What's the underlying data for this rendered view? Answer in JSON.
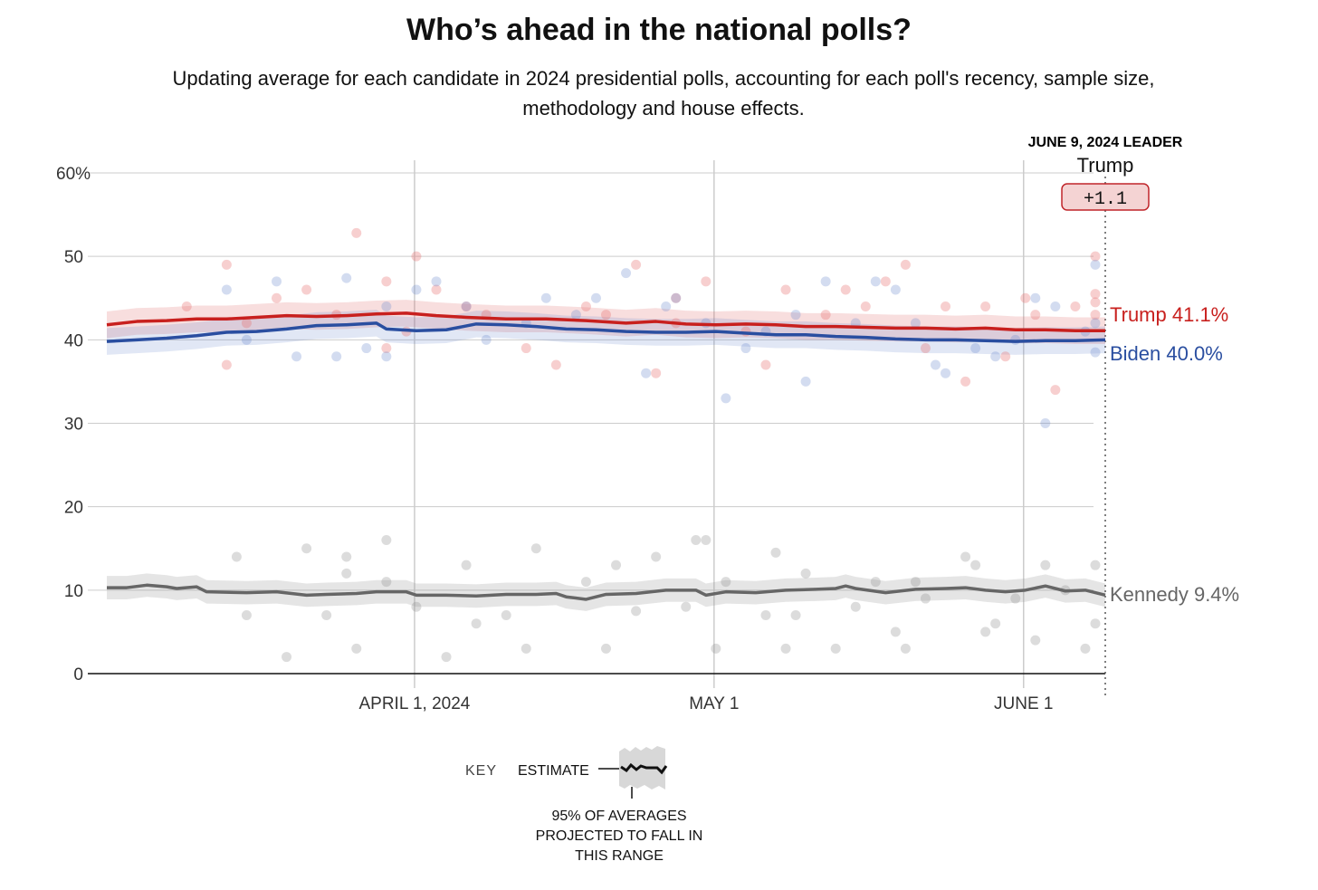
{
  "header": {
    "title": "Who’s ahead in the national polls?",
    "subtitle": "Updating average for each candidate in 2024 presidential polls, accounting for each poll's recency, sample size, methodology and house effects."
  },
  "leader": {
    "heading": "JUNE 9, 2024 LEADER",
    "name": "Trump",
    "margin": "+1.1"
  },
  "key": {
    "label": "KEY",
    "estimate": "ESTIMATE",
    "range_lines": [
      "95% OF AVERAGES",
      "PROJECTED TO FALL IN",
      "THIS RANGE"
    ]
  },
  "chart_data": {
    "type": "line",
    "title": "Who’s ahead in the national polls?",
    "x_unit": "days since March 1, 2024",
    "xlim": [
      0,
      100
    ],
    "ylim": [
      0,
      60
    ],
    "y_ticks": [
      0,
      10,
      20,
      30,
      40,
      50,
      60
    ],
    "y_tick_labels": [
      "0",
      "10",
      "20",
      "30",
      "40",
      "50",
      "60%"
    ],
    "x_ticks": [
      31,
      61,
      92
    ],
    "x_tick_labels": [
      "APRIL 1, 2024",
      "MAY 1",
      "JUNE 1"
    ],
    "grid": true,
    "colors": {
      "Trump": "#c8201e",
      "Biden": "#2a4ea0",
      "Kennedy": "#666666"
    },
    "series": [
      {
        "name": "Trump",
        "end_label": "Trump 41.1%",
        "band": 1.6,
        "points": [
          [
            0,
            41.8
          ],
          [
            3,
            42.2
          ],
          [
            6,
            42.3
          ],
          [
            9,
            42.5
          ],
          [
            12,
            42.5
          ],
          [
            15,
            42.7
          ],
          [
            18,
            42.9
          ],
          [
            21,
            42.8
          ],
          [
            24,
            42.9
          ],
          [
            27,
            43.1
          ],
          [
            30,
            43.2
          ],
          [
            33,
            42.9
          ],
          [
            36,
            42.7
          ],
          [
            40,
            42.5
          ],
          [
            44,
            42.5
          ],
          [
            48,
            42.3
          ],
          [
            52,
            42.0
          ],
          [
            55,
            42.2
          ],
          [
            58,
            41.9
          ],
          [
            61,
            41.8
          ],
          [
            64,
            41.9
          ],
          [
            67,
            41.8
          ],
          [
            70,
            41.6
          ],
          [
            73,
            41.6
          ],
          [
            76,
            41.5
          ],
          [
            79,
            41.4
          ],
          [
            82,
            41.4
          ],
          [
            85,
            41.3
          ],
          [
            88,
            41.4
          ],
          [
            91,
            41.2
          ],
          [
            94,
            41.2
          ],
          [
            97,
            41.1
          ],
          [
            100,
            41.1
          ]
        ],
        "polls": [
          [
            8,
            44
          ],
          [
            12,
            49
          ],
          [
            12,
            37
          ],
          [
            14,
            42
          ],
          [
            17,
            45
          ],
          [
            20,
            46
          ],
          [
            23,
            43
          ],
          [
            25,
            52.8
          ],
          [
            28,
            47
          ],
          [
            28,
            39
          ],
          [
            31,
            50
          ],
          [
            30,
            41
          ],
          [
            33,
            46
          ],
          [
            36,
            44
          ],
          [
            38,
            43
          ],
          [
            42,
            39
          ],
          [
            45,
            37
          ],
          [
            48,
            44
          ],
          [
            50,
            43
          ],
          [
            53,
            49
          ],
          [
            55,
            36
          ],
          [
            57,
            45
          ],
          [
            57,
            42
          ],
          [
            60,
            47
          ],
          [
            64,
            41
          ],
          [
            66,
            37
          ],
          [
            68,
            46
          ],
          [
            72,
            43
          ],
          [
            74,
            46
          ],
          [
            76,
            44
          ],
          [
            78,
            47
          ],
          [
            80,
            49
          ],
          [
            82,
            39
          ],
          [
            84,
            44
          ],
          [
            86,
            35
          ],
          [
            88,
            44
          ],
          [
            90,
            38
          ],
          [
            92,
            45
          ],
          [
            93,
            43
          ],
          [
            95,
            34
          ],
          [
            97,
            44
          ],
          [
            99,
            45.5
          ],
          [
            102,
            44.5
          ],
          [
            103,
            43
          ],
          [
            104,
            50
          ]
        ]
      },
      {
        "name": "Biden",
        "end_label": "Biden 40.0%",
        "band": 1.6,
        "points": [
          [
            0,
            39.8
          ],
          [
            3,
            40.0
          ],
          [
            6,
            40.2
          ],
          [
            9,
            40.5
          ],
          [
            12,
            40.9
          ],
          [
            15,
            41.0
          ],
          [
            18,
            41.3
          ],
          [
            21,
            41.7
          ],
          [
            24,
            41.8
          ],
          [
            27,
            42.0
          ],
          [
            28,
            41.3
          ],
          [
            31,
            41.1
          ],
          [
            34,
            41.2
          ],
          [
            37,
            41.9
          ],
          [
            40,
            41.8
          ],
          [
            43,
            41.6
          ],
          [
            46,
            41.3
          ],
          [
            49,
            41.2
          ],
          [
            52,
            41.0
          ],
          [
            55,
            40.9
          ],
          [
            58,
            40.9
          ],
          [
            61,
            41.0
          ],
          [
            64,
            40.8
          ],
          [
            67,
            40.6
          ],
          [
            70,
            40.6
          ],
          [
            73,
            40.4
          ],
          [
            76,
            40.3
          ],
          [
            79,
            40.1
          ],
          [
            82,
            40.0
          ],
          [
            85,
            40.0
          ],
          [
            88,
            39.9
          ],
          [
            91,
            39.8
          ],
          [
            94,
            39.9
          ],
          [
            97,
            39.9
          ],
          [
            100,
            40.0
          ]
        ],
        "polls": [
          [
            12,
            46
          ],
          [
            14,
            40
          ],
          [
            17,
            47
          ],
          [
            19,
            38
          ],
          [
            23,
            38
          ],
          [
            24,
            47.4
          ],
          [
            26,
            39
          ],
          [
            28,
            38
          ],
          [
            28,
            44
          ],
          [
            31,
            46
          ],
          [
            33,
            47
          ],
          [
            36,
            44
          ],
          [
            38,
            40
          ],
          [
            42,
            42
          ],
          [
            44,
            45
          ],
          [
            47,
            43
          ],
          [
            49,
            45
          ],
          [
            52,
            48
          ],
          [
            54,
            36
          ],
          [
            56,
            44
          ],
          [
            57,
            45
          ],
          [
            60,
            42
          ],
          [
            62,
            33
          ],
          [
            64,
            39
          ],
          [
            66,
            41
          ],
          [
            69,
            43
          ],
          [
            70,
            35
          ],
          [
            72,
            47
          ],
          [
            75,
            42
          ],
          [
            77,
            47
          ],
          [
            79,
            46
          ],
          [
            81,
            42
          ],
          [
            83,
            37
          ],
          [
            84,
            36
          ],
          [
            87,
            39
          ],
          [
            89,
            38
          ],
          [
            91,
            40
          ],
          [
            93,
            45
          ],
          [
            94,
            30
          ],
          [
            95,
            44
          ],
          [
            98,
            41
          ],
          [
            101,
            38.5
          ],
          [
            103,
            42
          ],
          [
            105,
            49
          ]
        ]
      },
      {
        "name": "Kennedy",
        "end_label": "Kennedy 9.4%",
        "band": 1.4,
        "points": [
          [
            0,
            10.3
          ],
          [
            2,
            10.3
          ],
          [
            4,
            10.6
          ],
          [
            6,
            10.4
          ],
          [
            7,
            10.2
          ],
          [
            9,
            10.4
          ],
          [
            10,
            9.8
          ],
          [
            14,
            9.7
          ],
          [
            17,
            9.8
          ],
          [
            20,
            9.4
          ],
          [
            22,
            9.5
          ],
          [
            25,
            9.6
          ],
          [
            27,
            9.8
          ],
          [
            30,
            9.8
          ],
          [
            31,
            9.4
          ],
          [
            34,
            9.4
          ],
          [
            37,
            9.3
          ],
          [
            40,
            9.5
          ],
          [
            43,
            9.5
          ],
          [
            45,
            9.6
          ],
          [
            46,
            9.2
          ],
          [
            48,
            8.9
          ],
          [
            50,
            9.5
          ],
          [
            53,
            9.6
          ],
          [
            56,
            10.0
          ],
          [
            59,
            10.0
          ],
          [
            60,
            9.4
          ],
          [
            62,
            9.8
          ],
          [
            65,
            9.7
          ],
          [
            68,
            10.0
          ],
          [
            71,
            10.1
          ],
          [
            73,
            10.2
          ],
          [
            74,
            10.5
          ],
          [
            75,
            10.2
          ],
          [
            78,
            9.7
          ],
          [
            81,
            10.1
          ],
          [
            84,
            10.2
          ],
          [
            86,
            10.3
          ],
          [
            88,
            10.0
          ],
          [
            90,
            9.8
          ],
          [
            92,
            10.0
          ],
          [
            94,
            10.5
          ],
          [
            96,
            9.9
          ],
          [
            98,
            10.0
          ],
          [
            100,
            9.4
          ]
        ],
        "polls": [
          [
            13,
            14
          ],
          [
            14,
            7
          ],
          [
            18,
            2
          ],
          [
            20,
            15
          ],
          [
            22,
            7
          ],
          [
            24,
            14
          ],
          [
            24,
            12
          ],
          [
            25,
            3
          ],
          [
            28,
            16
          ],
          [
            28,
            11
          ],
          [
            31,
            8
          ],
          [
            34,
            2
          ],
          [
            36,
            13
          ],
          [
            37,
            6
          ],
          [
            40,
            7
          ],
          [
            42,
            3
          ],
          [
            43,
            15
          ],
          [
            48,
            11
          ],
          [
            50,
            3
          ],
          [
            51,
            13
          ],
          [
            53,
            7.5
          ],
          [
            55,
            14
          ],
          [
            58,
            8
          ],
          [
            59,
            16
          ],
          [
            60,
            16
          ],
          [
            61,
            3
          ],
          [
            62,
            11
          ],
          [
            66,
            7
          ],
          [
            67,
            14.5
          ],
          [
            68,
            3
          ],
          [
            69,
            7
          ],
          [
            70,
            12
          ],
          [
            73,
            3
          ],
          [
            75,
            8
          ],
          [
            77,
            11
          ],
          [
            79,
            5
          ],
          [
            80,
            3
          ],
          [
            81,
            11
          ],
          [
            82,
            9
          ],
          [
            86,
            14
          ],
          [
            87,
            13
          ],
          [
            88,
            5
          ],
          [
            89,
            6
          ],
          [
            91,
            9
          ],
          [
            93,
            4
          ],
          [
            94,
            13
          ],
          [
            96,
            10
          ],
          [
            98,
            3
          ],
          [
            99,
            13
          ],
          [
            100,
            6
          ]
        ]
      }
    ]
  }
}
